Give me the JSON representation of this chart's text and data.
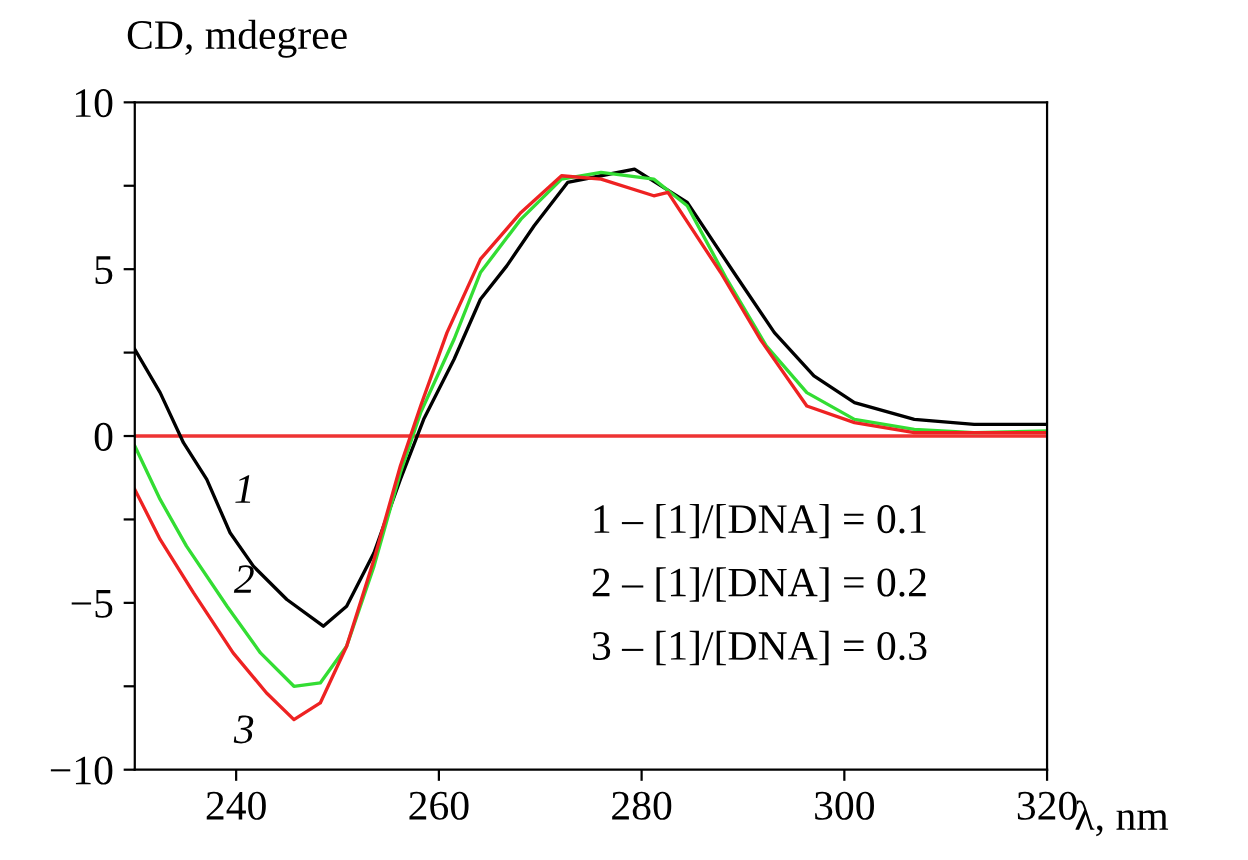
{
  "chart_data": {
    "type": "line",
    "xlabel": "λ, nm",
    "ylabel": "CD, mdegree",
    "xlim": [
      230,
      320
    ],
    "xticks": [
      240,
      260,
      280,
      300,
      320
    ],
    "ylim": [
      -10,
      10
    ],
    "yticks": [
      -10,
      {
        "value": -7.5,
        "label": null
      },
      -5,
      {
        "value": -2.5,
        "label": null
      },
      0,
      {
        "value": 2.5,
        "label": null
      },
      5,
      {
        "value": 7.5,
        "label": null
      },
      10
    ],
    "grid": false,
    "legend": false,
    "marker": "none",
    "line_style": "solid",
    "series": [
      {
        "color": "#000000",
        "x": [
          230,
          232.5,
          234.8,
          237.1,
          239.4,
          241.7,
          245,
          248.6,
          250.9,
          253.6,
          256.2,
          258.5,
          261.5,
          264.1,
          266.7,
          269.4,
          272.7,
          276,
          279.3,
          284.5,
          289.1,
          293.1,
          297,
          301,
          306.9,
          312.8,
          320
        ],
        "values": [
          2.6,
          1.3,
          -0.2,
          -1.3,
          -2.9,
          -3.9,
          -4.9,
          -5.7,
          -5.1,
          -3.5,
          -1.3,
          0.5,
          2.3,
          4.1,
          5.1,
          6.3,
          7.6,
          7.8,
          8.0,
          7.0,
          4.9,
          3.1,
          1.8,
          1.0,
          0.5,
          0.35,
          0.35
        ]
      },
      {
        "color": "#33dd33",
        "x": [
          230,
          232.5,
          235.1,
          239.1,
          242.4,
          245.7,
          248.3,
          250.9,
          253.6,
          256.2,
          258.2,
          261.5,
          264.1,
          268.1,
          272.1,
          276,
          281.2,
          284.5,
          288.4,
          292.3,
          296.3,
          301,
          306.9,
          312.8,
          320
        ],
        "values": [
          -0.3,
          -1.9,
          -3.3,
          -5.1,
          -6.5,
          -7.5,
          -7.4,
          -6.3,
          -3.9,
          -1.1,
          0.7,
          2.9,
          4.9,
          6.5,
          7.7,
          7.9,
          7.7,
          6.9,
          4.7,
          2.7,
          1.3,
          0.5,
          0.2,
          0.1,
          0.15
        ]
      },
      {
        "color": "#ee2222",
        "x": [
          230,
          232.5,
          235.8,
          239.7,
          243,
          245.7,
          248.3,
          250.9,
          253.6,
          256.2,
          258.2,
          260.8,
          264.1,
          268.1,
          272.1,
          276,
          281.2,
          282.6,
          287.8,
          291.7,
          296.3,
          301,
          306.9,
          312.8,
          320
        ],
        "values": [
          -1.6,
          -3.1,
          -4.7,
          -6.5,
          -7.7,
          -8.5,
          -8.0,
          -6.3,
          -3.7,
          -0.9,
          0.9,
          3.1,
          5.3,
          6.7,
          7.8,
          7.7,
          7.2,
          7.3,
          4.9,
          2.9,
          0.9,
          0.4,
          0.1,
          0.1,
          0.1
        ]
      }
    ],
    "ref_lines": [
      {
        "axis": "y",
        "value": 0,
        "color": "#ee3333",
        "line_style": "solid"
      }
    ],
    "annotations": [
      "1",
      "2",
      "3",
      "1 – [1]/[DNA] = 0.1",
      "2 – [1]/[DNA] = 0.2",
      "3 – [1]/[DNA] = 0.3"
    ]
  }
}
